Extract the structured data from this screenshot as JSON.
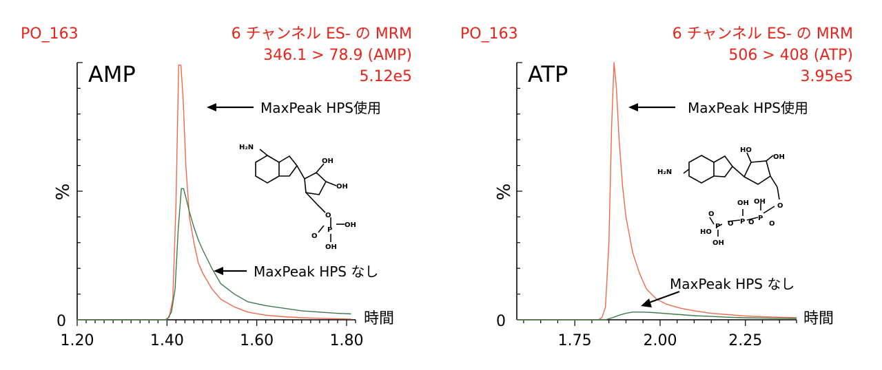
{
  "chart_data": [
    {
      "type": "line",
      "sample": "PO_163",
      "header": [
        "6 チャンネル ES- の MRM",
        "346.1 > 78.9 (AMP)",
        "5.12e5"
      ],
      "compound": "AMP",
      "ylabel": "%",
      "y_zero_label": "0",
      "xlabel": "時間",
      "xlim": [
        1.2,
        1.82
      ],
      "ylim": [
        0,
        100
      ],
      "xticks": [
        1.2,
        1.4,
        1.6,
        1.8
      ],
      "xtick_labels": [
        "1.20",
        "1.40",
        "1.60",
        "1.80"
      ],
      "annotations": [
        "MaxPeak HPS使用",
        "MaxPeak HPS なし"
      ],
      "series": [
        {
          "color": "#f0684a",
          "x": [
            1.2,
            1.395,
            1.405,
            1.413,
            1.42,
            1.426,
            1.431,
            1.436,
            1.442,
            1.45,
            1.46,
            1.47,
            1.48,
            1.5,
            1.52,
            1.55,
            1.58,
            1.62,
            1.66,
            1.7,
            1.75,
            1.81
          ],
          "y": [
            0,
            0,
            1,
            8,
            45,
            99,
            99,
            86,
            60,
            40,
            30,
            22,
            18,
            12,
            8,
            5,
            3,
            1.8,
            1.2,
            0.8,
            0.5,
            0.3
          ]
        },
        {
          "color": "#3d7a4a",
          "x": [
            1.2,
            1.4,
            1.41,
            1.418,
            1.425,
            1.432,
            1.437,
            1.443,
            1.45,
            1.46,
            1.47,
            1.48,
            1.5,
            1.52,
            1.55,
            1.58,
            1.62,
            1.66,
            1.7,
            1.74,
            1.78,
            1.81
          ],
          "y": [
            0,
            0,
            3,
            12,
            35,
            51,
            51,
            47,
            42,
            36,
            31,
            27,
            20,
            14,
            10,
            7,
            5.5,
            4.5,
            3.5,
            3.0,
            2.5,
            2.3
          ]
        }
      ]
    },
    {
      "type": "line",
      "sample": "PO_163",
      "header": [
        "6 チャンネル ES- の MRM",
        "506 > 408 (ATP)",
        "3.95e5"
      ],
      "compound": "ATP",
      "ylabel": "%",
      "y_zero_label": "0",
      "xlabel": "時間",
      "xlim": [
        1.58,
        2.4
      ],
      "ylim": [
        0,
        100
      ],
      "xticks": [
        1.75,
        2.0,
        2.25
      ],
      "xtick_labels": [
        "1.75",
        "2.00",
        "2.25"
      ],
      "annotations": [
        "MaxPeak HPS使用",
        "MaxPeak HPS なし"
      ],
      "series": [
        {
          "color": "#f0684a",
          "x": [
            1.58,
            1.82,
            1.83,
            1.84,
            1.85,
            1.858,
            1.865,
            1.872,
            1.88,
            1.89,
            1.9,
            1.92,
            1.94,
            1.96,
            1.99,
            2.02,
            2.06,
            2.1,
            2.15,
            2.2,
            2.25,
            2.3,
            2.35,
            2.4
          ],
          "y": [
            0,
            0,
            1,
            5,
            30,
            75,
            100,
            90,
            70,
            52,
            40,
            26,
            18,
            12,
            8,
            6,
            4.5,
            3.5,
            2.5,
            2.0,
            1.5,
            1.2,
            1.0,
            0.8
          ]
        },
        {
          "color": "#3d7a4a",
          "x": [
            1.58,
            1.84,
            1.86,
            1.88,
            1.9,
            1.92,
            1.95,
            1.98,
            2.02,
            2.06,
            2.1,
            2.15,
            2.2,
            2.25,
            2.3,
            2.35,
            2.4
          ],
          "y": [
            0,
            0,
            0.8,
            1.8,
            2.5,
            3.0,
            3.0,
            2.8,
            2.4,
            2.0,
            1.6,
            1.3,
            1.0,
            0.8,
            0.7,
            0.6,
            0.5
          ]
        }
      ]
    }
  ]
}
